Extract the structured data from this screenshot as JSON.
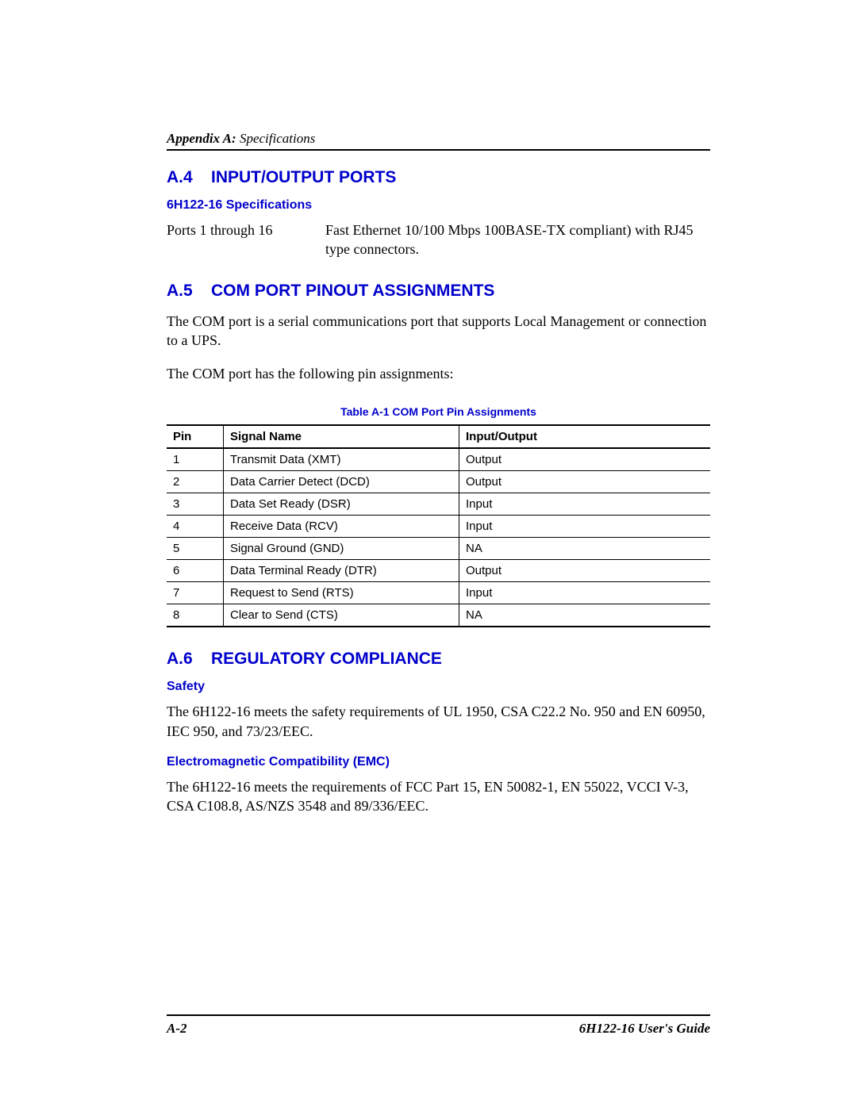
{
  "header": {
    "appendix_bold": "Appendix A:",
    "appendix_rest": " Specifications"
  },
  "a4": {
    "num": "A.4",
    "title": "INPUT/OUTPUT PORTS",
    "sub": "6H122-16 Specifications",
    "spec_label": "Ports 1 through 16",
    "spec_value": "Fast Ethernet 10/100 Mbps 100BASE-TX compliant) with RJ45 type connectors."
  },
  "a5": {
    "num": "A.5",
    "title": "COM PORT PINOUT ASSIGNMENTS",
    "para1": "The COM port is a serial communications port that supports Local Management or connection to a UPS.",
    "para2": "The COM port has the following pin assignments:",
    "table_caption": "Table A-1   COM Port Pin Assignments",
    "columns": [
      "Pin",
      "Signal Name",
      "Input/Output"
    ],
    "rows": [
      [
        "1",
        "Transmit Data (XMT)",
        "Output"
      ],
      [
        "2",
        "Data Carrier Detect (DCD)",
        "Output"
      ],
      [
        "3",
        "Data Set Ready (DSR)",
        "Input"
      ],
      [
        "4",
        "Receive Data (RCV)",
        "Input"
      ],
      [
        "5",
        "Signal Ground (GND)",
        "NA"
      ],
      [
        "6",
        "Data Terminal Ready (DTR)",
        "Output"
      ],
      [
        "7",
        "Request to Send (RTS)",
        "Input"
      ],
      [
        "8",
        "Clear to Send (CTS)",
        "NA"
      ]
    ]
  },
  "a6": {
    "num": "A.6",
    "title": "REGULATORY COMPLIANCE",
    "safety_heading": "Safety",
    "safety_text": "The 6H122-16 meets the safety requirements of UL 1950, CSA C22.2 No. 950 and EN 60950, IEC 950, and 73/23/EEC.",
    "emc_heading": "Electromagnetic Compatibility (EMC)",
    "emc_text": "The 6H122-16 meets the requirements of FCC Part 15, EN 50082-1, EN 55022, VCCI V-3, CSA C108.8, AS/NZS 3548 and 89/336/EEC."
  },
  "footer": {
    "page_num": "A-2",
    "guide": "6H122-16 User's Guide"
  },
  "colors": {
    "heading_blue": "#0000cc",
    "text_black": "#000000"
  }
}
